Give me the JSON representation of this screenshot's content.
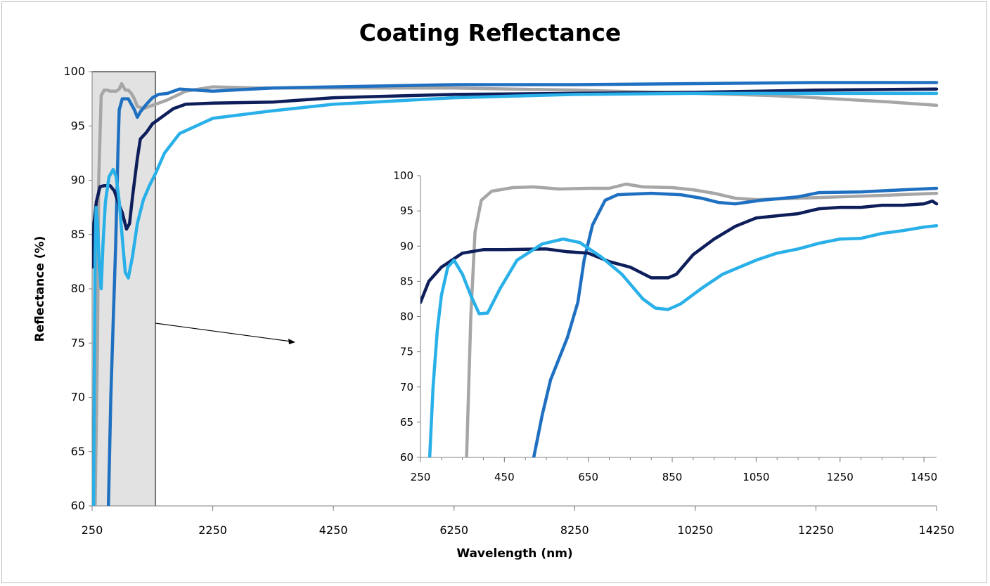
{
  "chart_data": [
    {
      "type": "line",
      "title": "Coating Reflectance",
      "xlabel": "Wavelength (nm)",
      "ylabel": "Reflectance (%)",
      "xlim": [
        250,
        14250
      ],
      "ylim": [
        60,
        100
      ],
      "xticks": [
        "250",
        "2250",
        "4250",
        "6250",
        "8250",
        "10250",
        "12250",
        "14250"
      ],
      "yticks": [
        "60",
        "65",
        "70",
        "75",
        "80",
        "85",
        "90",
        "95",
        "100"
      ],
      "grid": false,
      "legend": "none",
      "highlight_region": {
        "x": [
          250,
          1300
        ],
        "y": [
          60,
          100
        ],
        "color": "#e2e2e2"
      },
      "series": [
        {
          "color": "#a6a6a6",
          "points": [
            [
              260,
              60
            ],
            [
              300,
              60
            ],
            [
              340,
              75
            ],
            [
              360,
              90
            ],
            [
              400,
              97.8
            ],
            [
              450,
              98.3
            ],
            [
              500,
              98.3
            ],
            [
              550,
              98.2
            ],
            [
              600,
              98.2
            ],
            [
              650,
              98.2
            ],
            [
              700,
              98.4
            ],
            [
              740,
              98.9
            ],
            [
              800,
              98.3
            ],
            [
              850,
              98.3
            ],
            [
              900,
              98
            ],
            [
              950,
              97.5
            ],
            [
              1000,
              96.8
            ],
            [
              1100,
              96.6
            ],
            [
              1200,
              96.8
            ],
            [
              1300,
              97
            ],
            [
              1500,
              97.4
            ],
            [
              1800,
              98.2
            ],
            [
              2250,
              98.6
            ],
            [
              3000,
              98.5
            ],
            [
              4250,
              98.5
            ],
            [
              6250,
              98.5
            ],
            [
              8250,
              98.3
            ],
            [
              10250,
              98
            ],
            [
              11500,
              97.8
            ],
            [
              12250,
              97.6
            ],
            [
              13500,
              97.2
            ],
            [
              14250,
              96.9
            ]
          ]
        },
        {
          "color": "#1f70c1",
          "points": [
            [
              520,
              60
            ],
            [
              560,
              70
            ],
            [
              600,
              77
            ],
            [
              640,
              84
            ],
            [
              680,
              93
            ],
            [
              700,
              96.5
            ],
            [
              750,
              97.5
            ],
            [
              850,
              97.5
            ],
            [
              950,
              96.5
            ],
            [
              1000,
              95.8
            ],
            [
              1050,
              96.3
            ],
            [
              1150,
              97
            ],
            [
              1250,
              97.6
            ],
            [
              1350,
              97.9
            ],
            [
              1500,
              98
            ],
            [
              1700,
              98.4
            ],
            [
              2250,
              98.2
            ],
            [
              3250,
              98.5
            ],
            [
              4250,
              98.6
            ],
            [
              6250,
              98.8
            ],
            [
              8250,
              98.8
            ],
            [
              10250,
              98.9
            ],
            [
              12250,
              99
            ],
            [
              14250,
              99
            ]
          ]
        },
        {
          "color": "#0e1e5b",
          "points": [
            [
              250,
              82
            ],
            [
              280,
              86
            ],
            [
              320,
              88
            ],
            [
              380,
              89.4
            ],
            [
              450,
              89.5
            ],
            [
              550,
              89.5
            ],
            [
              620,
              89
            ],
            [
              680,
              88
            ],
            [
              750,
              87
            ],
            [
              820,
              85.5
            ],
            [
              870,
              86
            ],
            [
              920,
              88.5
            ],
            [
              1000,
              92
            ],
            [
              1050,
              93.8
            ],
            [
              1150,
              94.4
            ],
            [
              1250,
              95.2
            ],
            [
              1350,
              95.6
            ],
            [
              1450,
              96
            ],
            [
              1600,
              96.6
            ],
            [
              1800,
              97
            ],
            [
              2250,
              97.1
            ],
            [
              3250,
              97.2
            ],
            [
              4250,
              97.6
            ],
            [
              6250,
              97.9
            ],
            [
              8250,
              98
            ],
            [
              10250,
              98.1
            ],
            [
              12250,
              98.3
            ],
            [
              14250,
              98.4
            ]
          ]
        },
        {
          "color": "#29b0e8",
          "points": [
            [
              275,
              60
            ],
            [
              290,
              75
            ],
            [
              300,
              83
            ],
            [
              315,
              87.5
            ],
            [
              340,
              86
            ],
            [
              370,
              82
            ],
            [
              400,
              80
            ],
            [
              430,
              84
            ],
            [
              470,
              88
            ],
            [
              530,
              90.3
            ],
            [
              600,
              91
            ],
            [
              650,
              90.3
            ],
            [
              700,
              88
            ],
            [
              760,
              84
            ],
            [
              800,
              81.5
            ],
            [
              850,
              81
            ],
            [
              920,
              83
            ],
            [
              1000,
              86
            ],
            [
              1100,
              88.2
            ],
            [
              1200,
              89.5
            ],
            [
              1300,
              90.6
            ],
            [
              1450,
              92.5
            ],
            [
              1700,
              94.3
            ],
            [
              2250,
              95.7
            ],
            [
              3250,
              96.4
            ],
            [
              4250,
              97
            ],
            [
              6250,
              97.6
            ],
            [
              8250,
              97.9
            ],
            [
              10250,
              98
            ],
            [
              12250,
              98
            ],
            [
              14250,
              98
            ]
          ]
        }
      ]
    },
    {
      "type": "line",
      "title": "",
      "xlabel": "",
      "ylabel": "",
      "xlim": [
        250,
        1480
      ],
      "ylim": [
        60,
        100
      ],
      "xticks": [
        "250",
        "450",
        "650",
        "850",
        "1050",
        "1250",
        "1450"
      ],
      "yticks": [
        "60",
        "65",
        "70",
        "75",
        "80",
        "85",
        "90",
        "95",
        "100"
      ],
      "grid": false,
      "legend": "none",
      "series": [
        {
          "color": "#a6a6a6",
          "points": [
            [
              360,
              60
            ],
            [
              370,
              80
            ],
            [
              380,
              92
            ],
            [
              395,
              96.5
            ],
            [
              420,
              97.8
            ],
            [
              470,
              98.3
            ],
            [
              520,
              98.4
            ],
            [
              580,
              98.1
            ],
            [
              650,
              98.2
            ],
            [
              700,
              98.2
            ],
            [
              740,
              98.8
            ],
            [
              780,
              98.4
            ],
            [
              850,
              98.3
            ],
            [
              900,
              98
            ],
            [
              950,
              97.5
            ],
            [
              1000,
              96.8
            ],
            [
              1050,
              96.6
            ],
            [
              1150,
              96.8
            ],
            [
              1250,
              97
            ],
            [
              1350,
              97.2
            ],
            [
              1480,
              97.5
            ]
          ]
        },
        {
          "color": "#1f70c1",
          "points": [
            [
              520,
              60
            ],
            [
              540,
              66
            ],
            [
              560,
              71
            ],
            [
              600,
              77
            ],
            [
              625,
              82
            ],
            [
              640,
              88
            ],
            [
              660,
              93
            ],
            [
              690,
              96.5
            ],
            [
              720,
              97.3
            ],
            [
              800,
              97.5
            ],
            [
              870,
              97.3
            ],
            [
              920,
              96.8
            ],
            [
              960,
              96.2
            ],
            [
              1000,
              96
            ],
            [
              1060,
              96.5
            ],
            [
              1150,
              97
            ],
            [
              1200,
              97.6
            ],
            [
              1300,
              97.7
            ],
            [
              1400,
              98
            ],
            [
              1480,
              98.2
            ]
          ]
        },
        {
          "color": "#0e1e5b",
          "points": [
            [
              250,
              82
            ],
            [
              270,
              85
            ],
            [
              300,
              87
            ],
            [
              350,
              89
            ],
            [
              400,
              89.5
            ],
            [
              450,
              89.5
            ],
            [
              550,
              89.6
            ],
            [
              600,
              89.2
            ],
            [
              650,
              89
            ],
            [
              700,
              87.8
            ],
            [
              750,
              87
            ],
            [
              800,
              85.5
            ],
            [
              840,
              85.5
            ],
            [
              860,
              86
            ],
            [
              900,
              88.8
            ],
            [
              950,
              91
            ],
            [
              1000,
              92.8
            ],
            [
              1050,
              94
            ],
            [
              1100,
              94.3
            ],
            [
              1150,
              94.6
            ],
            [
              1200,
              95.3
            ],
            [
              1250,
              95.5
            ],
            [
              1300,
              95.5
            ],
            [
              1350,
              95.8
            ],
            [
              1400,
              95.8
            ],
            [
              1450,
              96
            ],
            [
              1470,
              96.4
            ],
            [
              1480,
              96
            ]
          ]
        },
        {
          "color": "#29b0e8",
          "points": [
            [
              272,
              60
            ],
            [
              280,
              70
            ],
            [
              290,
              78
            ],
            [
              300,
              83
            ],
            [
              315,
              87
            ],
            [
              330,
              88
            ],
            [
              350,
              86
            ],
            [
              370,
              83
            ],
            [
              390,
              80.4
            ],
            [
              410,
              80.5
            ],
            [
              440,
              84
            ],
            [
              480,
              88
            ],
            [
              540,
              90.3
            ],
            [
              590,
              91
            ],
            [
              630,
              90.5
            ],
            [
              680,
              88.5
            ],
            [
              730,
              86
            ],
            [
              780,
              82.5
            ],
            [
              810,
              81.2
            ],
            [
              840,
              81
            ],
            [
              870,
              81.8
            ],
            [
              920,
              84
            ],
            [
              970,
              86
            ],
            [
              1050,
              88
            ],
            [
              1100,
              89
            ],
            [
              1150,
              89.6
            ],
            [
              1200,
              90.4
            ],
            [
              1250,
              91
            ],
            [
              1300,
              91.1
            ],
            [
              1350,
              91.8
            ],
            [
              1400,
              92.2
            ],
            [
              1450,
              92.7
            ],
            [
              1480,
              92.9
            ]
          ]
        }
      ]
    }
  ]
}
